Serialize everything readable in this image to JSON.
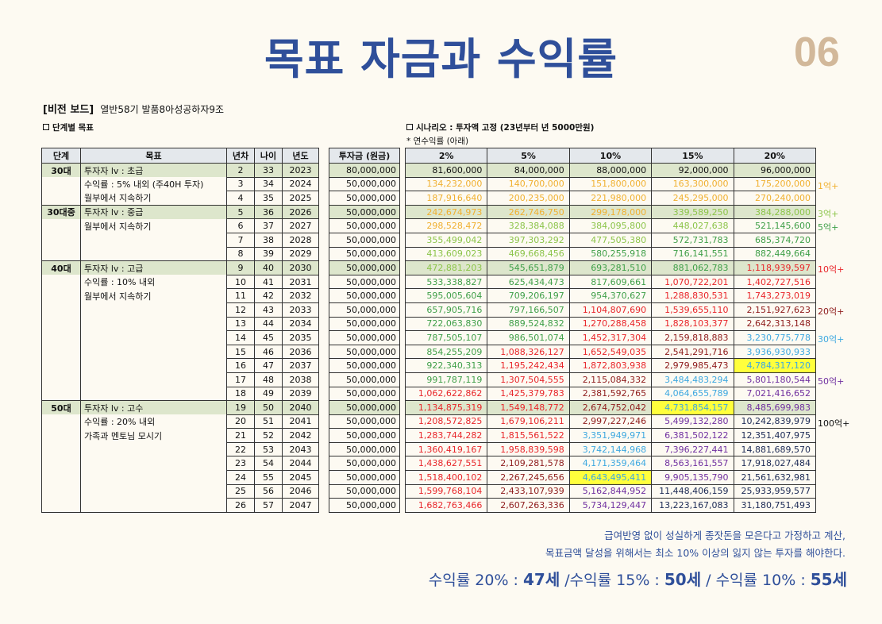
{
  "title": "목표 자금과 수익률",
  "page_number": "06",
  "vision_board": {
    "label": "[비전 보드]",
    "subtitle": "열반58기 발품8아성공하자9조"
  },
  "section_goals": "단계별 목표",
  "section_scenario": "시나리오 : 투자액 고정 (23년부터 년 5000만원)",
  "scenario_note": "* 연수익률 (아래)",
  "headers": {
    "stage": "단계",
    "goal": "목표",
    "year_no": "년차",
    "age": "나이",
    "year": "년도",
    "invest": "투자금 (원금)",
    "rates": [
      "2%",
      "5%",
      "10%",
      "15%",
      "20%"
    ]
  },
  "stages": [
    {
      "label": "30대",
      "start": 0,
      "goals": [
        "투자자 lv : 초급",
        "수익률 : 5% 내외 (주40H 투자)",
        "월부에서 지속하기"
      ]
    },
    {
      "label": "30대중",
      "start": 3,
      "goals": [
        "투자자 lv : 중급",
        "월부에서 지속하기"
      ]
    },
    {
      "label": "40대",
      "start": 7,
      "goals": [
        "투자자 lv : 고급",
        "수익률 : 10% 내외",
        "월부에서 지속하기"
      ]
    },
    {
      "label": "50대",
      "start": 17,
      "goals": [
        "투자자 lv : 고수",
        "수익률 : 20% 내외",
        "가족과 멘토님 모시기"
      ]
    }
  ],
  "rows": [
    {
      "n": "2",
      "age": "33",
      "year": "2023",
      "invest": "80,000,000",
      "v": [
        "81,600,000",
        "84,000,000",
        "88,000,000",
        "92,000,000",
        "96,000,000"
      ]
    },
    {
      "n": "3",
      "age": "34",
      "year": "2024",
      "invest": "50,000,000",
      "v": [
        "134,232,000",
        "140,700,000",
        "151,800,000",
        "163,300,000",
        "175,200,000"
      ]
    },
    {
      "n": "4",
      "age": "35",
      "year": "2025",
      "invest": "50,000,000",
      "v": [
        "187,916,640",
        "200,235,000",
        "221,980,000",
        "245,295,000",
        "270,240,000"
      ]
    },
    {
      "n": "5",
      "age": "36",
      "year": "2026",
      "invest": "50,000,000",
      "v": [
        "242,674,973",
        "262,746,750",
        "299,178,000",
        "339,589,250",
        "384,288,000"
      ]
    },
    {
      "n": "6",
      "age": "37",
      "year": "2027",
      "invest": "50,000,000",
      "v": [
        "298,528,472",
        "328,384,088",
        "384,095,800",
        "448,027,638",
        "521,145,600"
      ]
    },
    {
      "n": "7",
      "age": "38",
      "year": "2028",
      "invest": "50,000,000",
      "v": [
        "355,499,042",
        "397,303,292",
        "477,505,380",
        "572,731,783",
        "685,374,720"
      ]
    },
    {
      "n": "8",
      "age": "39",
      "year": "2029",
      "invest": "50,000,000",
      "v": [
        "413,609,023",
        "469,668,456",
        "580,255,918",
        "716,141,551",
        "882,449,664"
      ]
    },
    {
      "n": "9",
      "age": "40",
      "year": "2030",
      "invest": "50,000,000",
      "v": [
        "472,881,203",
        "545,651,879",
        "693,281,510",
        "881,062,783",
        "1,118,939,597"
      ]
    },
    {
      "n": "10",
      "age": "41",
      "year": "2031",
      "invest": "50,000,000",
      "v": [
        "533,338,827",
        "625,434,473",
        "817,609,661",
        "1,070,722,201",
        "1,402,727,516"
      ]
    },
    {
      "n": "11",
      "age": "42",
      "year": "2032",
      "invest": "50,000,000",
      "v": [
        "595,005,604",
        "709,206,197",
        "954,370,627",
        "1,288,830,531",
        "1,743,273,019"
      ]
    },
    {
      "n": "12",
      "age": "43",
      "year": "2033",
      "invest": "50,000,000",
      "v": [
        "657,905,716",
        "797,166,507",
        "1,104,807,690",
        "1,539,655,110",
        "2,151,927,623"
      ]
    },
    {
      "n": "13",
      "age": "44",
      "year": "2034",
      "invest": "50,000,000",
      "v": [
        "722,063,830",
        "889,524,832",
        "1,270,288,458",
        "1,828,103,377",
        "2,642,313,148"
      ]
    },
    {
      "n": "14",
      "age": "45",
      "year": "2035",
      "invest": "50,000,000",
      "v": [
        "787,505,107",
        "986,501,074",
        "1,452,317,304",
        "2,159,818,883",
        "3,230,775,778"
      ]
    },
    {
      "n": "15",
      "age": "46",
      "year": "2036",
      "invest": "50,000,000",
      "v": [
        "854,255,209",
        "1,088,326,127",
        "1,652,549,035",
        "2,541,291,716",
        "3,936,930,933"
      ]
    },
    {
      "n": "16",
      "age": "47",
      "year": "2037",
      "invest": "50,000,000",
      "v": [
        "922,340,313",
        "1,195,242,434",
        "1,872,803,938",
        "2,979,985,473",
        "4,784,317,120"
      ]
    },
    {
      "n": "17",
      "age": "48",
      "year": "2038",
      "invest": "50,000,000",
      "v": [
        "991,787,119",
        "1,307,504,555",
        "2,115,084,332",
        "3,484,483,294",
        "5,801,180,544"
      ]
    },
    {
      "n": "18",
      "age": "49",
      "year": "2039",
      "invest": "50,000,000",
      "v": [
        "1,062,622,862",
        "1,425,379,783",
        "2,381,592,765",
        "4,064,655,789",
        "7,021,416,652"
      ]
    },
    {
      "n": "19",
      "age": "50",
      "year": "2040",
      "invest": "50,000,000",
      "v": [
        "1,134,875,319",
        "1,549,148,772",
        "2,674,752,042",
        "4,731,854,157",
        "8,485,699,983"
      ]
    },
    {
      "n": "20",
      "age": "51",
      "year": "2041",
      "invest": "50,000,000",
      "v": [
        "1,208,572,825",
        "1,679,106,211",
        "2,997,227,246",
        "5,499,132,280",
        "10,242,839,979"
      ]
    },
    {
      "n": "21",
      "age": "52",
      "year": "2042",
      "invest": "50,000,000",
      "v": [
        "1,283,744,282",
        "1,815,561,522",
        "3,351,949,971",
        "6,381,502,122",
        "12,351,407,975"
      ]
    },
    {
      "n": "22",
      "age": "53",
      "year": "2043",
      "invest": "50,000,000",
      "v": [
        "1,360,419,167",
        "1,958,839,598",
        "3,742,144,968",
        "7,396,227,441",
        "14,881,689,570"
      ]
    },
    {
      "n": "23",
      "age": "54",
      "year": "2044",
      "invest": "50,000,000",
      "v": [
        "1,438,627,551",
        "2,109,281,578",
        "4,171,359,464",
        "8,563,161,557",
        "17,918,027,484"
      ]
    },
    {
      "n": "24",
      "age": "55",
      "year": "2045",
      "invest": "50,000,000",
      "v": [
        "1,518,400,102",
        "2,267,245,656",
        "4,643,495,411",
        "9,905,135,790",
        "21,561,632,981"
      ]
    },
    {
      "n": "25",
      "age": "56",
      "year": "2046",
      "invest": "50,000,000",
      "v": [
        "1,599,768,104",
        "2,433,107,939",
        "5,162,844,952",
        "11,448,406,159",
        "25,933,959,577"
      ]
    },
    {
      "n": "26",
      "age": "57",
      "year": "2047",
      "invest": "50,000,000",
      "v": [
        "1,682,763,466",
        "2,607,263,336",
        "5,734,129,447",
        "13,223,167,083",
        "31,180,751,493"
      ]
    }
  ],
  "highlight_cells": [
    [
      14,
      4
    ],
    [
      17,
      3
    ],
    [
      22,
      2
    ]
  ],
  "color_scale": [
    {
      "min": 0,
      "color": "#111111"
    },
    {
      "min": 100000000,
      "color": "#f0b030"
    },
    {
      "min": 300000000,
      "color": "#8cc44a"
    },
    {
      "min": 500000000,
      "color": "#3f9f48"
    },
    {
      "min": 1000000000,
      "color": "#e8262a"
    },
    {
      "min": 2000000000,
      "color": "#8e1c1c"
    },
    {
      "min": 3000000000,
      "color": "#3ea8e0"
    },
    {
      "min": 5000000000,
      "color": "#7030a0"
    },
    {
      "min": 10000000000,
      "color": "#1c2a55"
    }
  ],
  "milestones": [
    {
      "row": 1,
      "label": "1억+",
      "color": "#f0b030"
    },
    {
      "row": 3,
      "label": "3억+",
      "color": "#8cc44a"
    },
    {
      "row": 4,
      "label": "5억+",
      "color": "#3f9f48"
    },
    {
      "row": 7,
      "label": "10억+",
      "color": "#e8262a"
    },
    {
      "row": 10,
      "label": "20억+",
      "color": "#8e1c1c"
    },
    {
      "row": 12,
      "label": "30억+",
      "color": "#3ea8e0"
    },
    {
      "row": 15,
      "label": "50억+",
      "color": "#7030a0"
    },
    {
      "row": 18,
      "label": "100억+",
      "color": "#111111"
    }
  ],
  "footer": {
    "line1": "급여반영 없이 성실하게 종잣돈을 모은다고 가정하고 계산,",
    "line2": "목표금액 달성을 위해서는 최소 10% 이상의 잃지 않는 투자를 해야한다.",
    "summary": [
      {
        "pre": "수익률 20% : ",
        "age": "47세"
      },
      {
        "pre": " /수익률 15% : ",
        "age": "50세"
      },
      {
        "pre": " / 수익률 10% : ",
        "age": "55세"
      }
    ]
  }
}
